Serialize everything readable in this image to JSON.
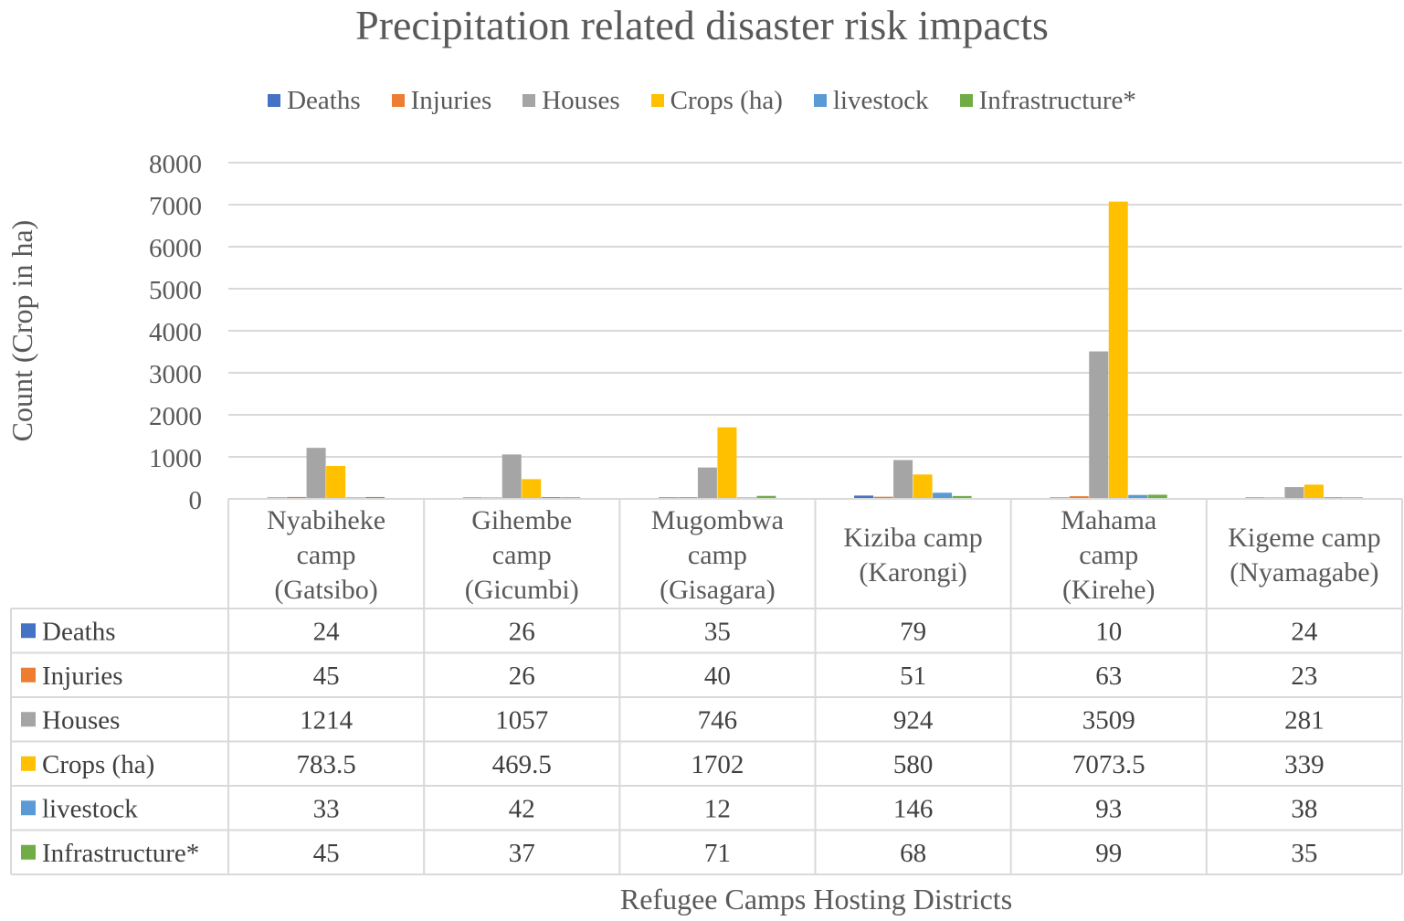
{
  "chart_data": {
    "type": "bar",
    "title": "Precipitation related disaster risk impacts",
    "xlabel": "Refugee Camps Hosting Districts",
    "ylabel": "Count (Crop in ha)",
    "ylim": [
      0,
      8000
    ],
    "yticks": [
      "0",
      "1000",
      "2000",
      "3000",
      "4000",
      "5000",
      "6000",
      "7000",
      "8000"
    ],
    "legend_position": "top",
    "grid": true,
    "categories": [
      [
        "Nyabiheke",
        "camp",
        "(Gatsibo)"
      ],
      [
        "Gihembe",
        "camp",
        "(Gicumbi)"
      ],
      [
        "Mugombwa",
        "camp",
        "(Gisagara)"
      ],
      [
        "Kiziba camp",
        "(Karongi)"
      ],
      [
        "Mahama",
        "camp",
        "(Kirehe)"
      ],
      [
        "Kigeme camp",
        "(Nyamagabe)"
      ]
    ],
    "series": [
      {
        "name": "Deaths",
        "color": "#4472C4",
        "values": [
          24,
          26,
          35,
          79,
          10,
          24
        ],
        "labels": [
          "24",
          "26",
          "35",
          "79",
          "10",
          "24"
        ]
      },
      {
        "name": "Injuries",
        "color": "#ED7D31",
        "values": [
          45,
          26,
          40,
          51,
          63,
          23
        ],
        "labels": [
          "45",
          "26",
          "40",
          "51",
          "63",
          "23"
        ]
      },
      {
        "name": "Houses",
        "color": "#A5A5A5",
        "values": [
          1214,
          1057,
          746,
          924,
          3509,
          281
        ],
        "labels": [
          "1214",
          "1057",
          "746",
          "924",
          "3509",
          "281"
        ]
      },
      {
        "name": "Crops (ha)",
        "color": "#FFC000",
        "values": [
          783.5,
          469.5,
          1702,
          580,
          7073.5,
          339
        ],
        "labels": [
          "783.5",
          "469.5",
          "1702",
          "580",
          "7073.5",
          "339"
        ]
      },
      {
        "name": "livestock",
        "color": "#5B9BD5",
        "values": [
          33,
          42,
          12,
          146,
          93,
          38
        ],
        "labels": [
          "33",
          "42",
          "12",
          "146",
          "93",
          "38"
        ]
      },
      {
        "name": "Infrastructure*",
        "color": "#70AD47",
        "values": [
          45,
          37,
          71,
          68,
          99,
          35
        ],
        "labels": [
          "45",
          "37",
          "71",
          "68",
          "99",
          "35"
        ]
      }
    ]
  }
}
